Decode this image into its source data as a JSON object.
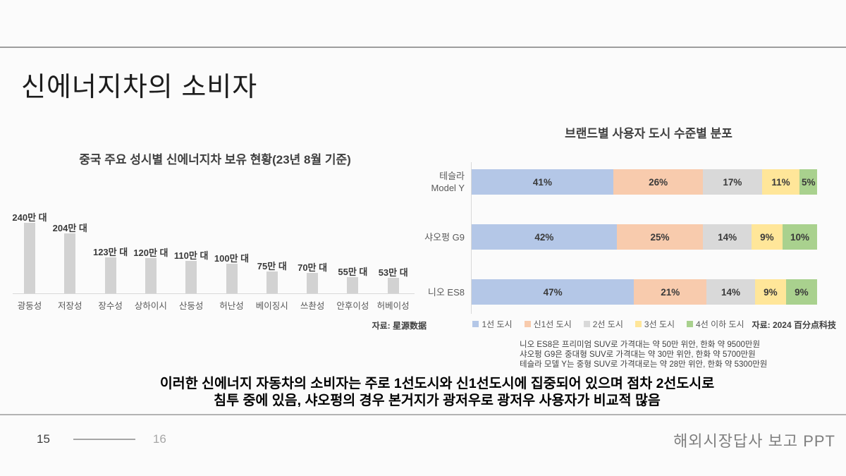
{
  "slide": {
    "title": "신에너지차의 소비자",
    "summary_line1": "이러한 신에너지 자동차의 소비자는 주로 1선도시와 신1선도시에 집중되어 있으며 점차 2선도시로",
    "summary_line2": "침투 중에 있음, 샤오펑의 경우 본거지가 광저우로 광저우 사용자가 비교적 많음",
    "footer": {
      "page_current": "15",
      "page_total": "16",
      "doc_title": "해외시장답사 보고 PPT"
    }
  },
  "chart_data": [
    {
      "type": "bar",
      "title": "중국 주요 성시별 신에너지차 보유 현황(23년 8월 기준)",
      "categories": [
        "광둥성",
        "저장성",
        "장수성",
        "상하이시",
        "산둥성",
        "허난성",
        "베이징시",
        "쓰촨성",
        "안후이성",
        "허베이성"
      ],
      "values": [
        240,
        204,
        123,
        120,
        110,
        100,
        75,
        70,
        55,
        53
      ],
      "value_labels": [
        "240만 대",
        "204만 대",
        "123만 대",
        "120만 대",
        "110만 대",
        "100만 대",
        "75만 대",
        "70만 대",
        "55만 대",
        "53만 대"
      ],
      "unit": "만 대",
      "ylim": [
        0,
        240
      ],
      "bar_color": "#d2d2d2",
      "grid": false,
      "source": "자료: 星源数据"
    },
    {
      "type": "bar",
      "subtype": "horizontal-stacked-percent",
      "title": "브랜드별 사용자 도시 수준별 분포",
      "categories": [
        "테슬라 Model Y",
        "샤오펑 G9",
        "니오 ES8"
      ],
      "category_label_lines": [
        [
          "테슬라",
          "Model Y"
        ],
        [
          "샤오펑 G9"
        ],
        [
          "니오 ES8"
        ]
      ],
      "series": [
        {
          "name": "1선 도시",
          "color": "#b4c7e7",
          "values": [
            41,
            42,
            47
          ]
        },
        {
          "name": "신1선 도시",
          "color": "#f8cbad",
          "values": [
            26,
            25,
            21
          ]
        },
        {
          "name": "2선 도시",
          "color": "#d9d9d9",
          "values": [
            17,
            14,
            14
          ]
        },
        {
          "name": "3선 도시",
          "color": "#ffe699",
          "values": [
            11,
            9,
            9
          ]
        },
        {
          "name": "4선 이하 도시",
          "color": "#a9d18e",
          "values": [
            5,
            10,
            9
          ]
        }
      ],
      "value_suffix": "%",
      "legend_position": "bottom",
      "source": "자료: 2024 百分点科技",
      "notes": [
        "니오 ES8은 프리미엄 SUV로 가격대는 약 50만 위안, 한화 약 9500만원",
        "샤오펑 G9은 중대형 SUV로 가격대는 약 30만 위안, 한화 약 5700만원",
        "테슬라 모델 Y는 중형 SUV로 가격대로는 약 28만 위안, 한화 약 5300만원"
      ]
    }
  ]
}
